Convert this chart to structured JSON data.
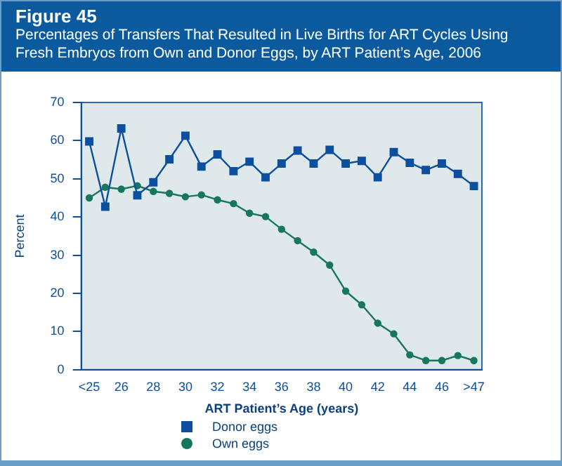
{
  "chart_data": {
    "type": "line",
    "title": "Figure 45",
    "subtitle": "Percentages of Transfers That Resulted in Live Births for ART Cycles Using Fresh Embryos from Own and Donor Eggs, by ART Patient’s Age, 2006",
    "xlabel": "ART Patient’s Age (years)",
    "ylabel": "Percent",
    "categories": [
      "<25",
      null,
      "26",
      null,
      "28",
      null,
      "30",
      null,
      "32",
      null,
      "34",
      null,
      "36",
      null,
      "38",
      null,
      "40",
      null,
      "42",
      null,
      "44",
      null,
      "46",
      null,
      ">47"
    ],
    "series": [
      {
        "name": "Donor eggs",
        "color": "#0b4f9e",
        "marker": "square",
        "values": [
          59.8,
          42.7,
          63.2,
          45.7,
          49.1,
          55.1,
          61.3,
          53.2,
          56.4,
          52,
          54.5,
          50.4,
          54,
          57.4,
          54,
          57.6,
          54,
          54.7,
          50.4,
          57,
          54.2,
          52.3,
          54,
          51.3,
          48.1
        ]
      },
      {
        "name": "Own eggs",
        "color": "#17775c",
        "marker": "circle",
        "values": [
          45,
          47.8,
          47.3,
          48.2,
          46.7,
          46.2,
          45.3,
          45.8,
          44.5,
          43.5,
          41,
          40.1,
          36.8,
          33.8,
          30.8,
          27.4,
          20.6,
          17,
          12.2,
          9.4,
          3.9,
          2.4,
          2.4,
          3.7,
          2.4
        ]
      }
    ],
    "ylim": [
      0,
      70
    ],
    "yticks": [
      0,
      10,
      20,
      30,
      40,
      50,
      60,
      70
    ],
    "grid": false,
    "legend": "bottom"
  }
}
